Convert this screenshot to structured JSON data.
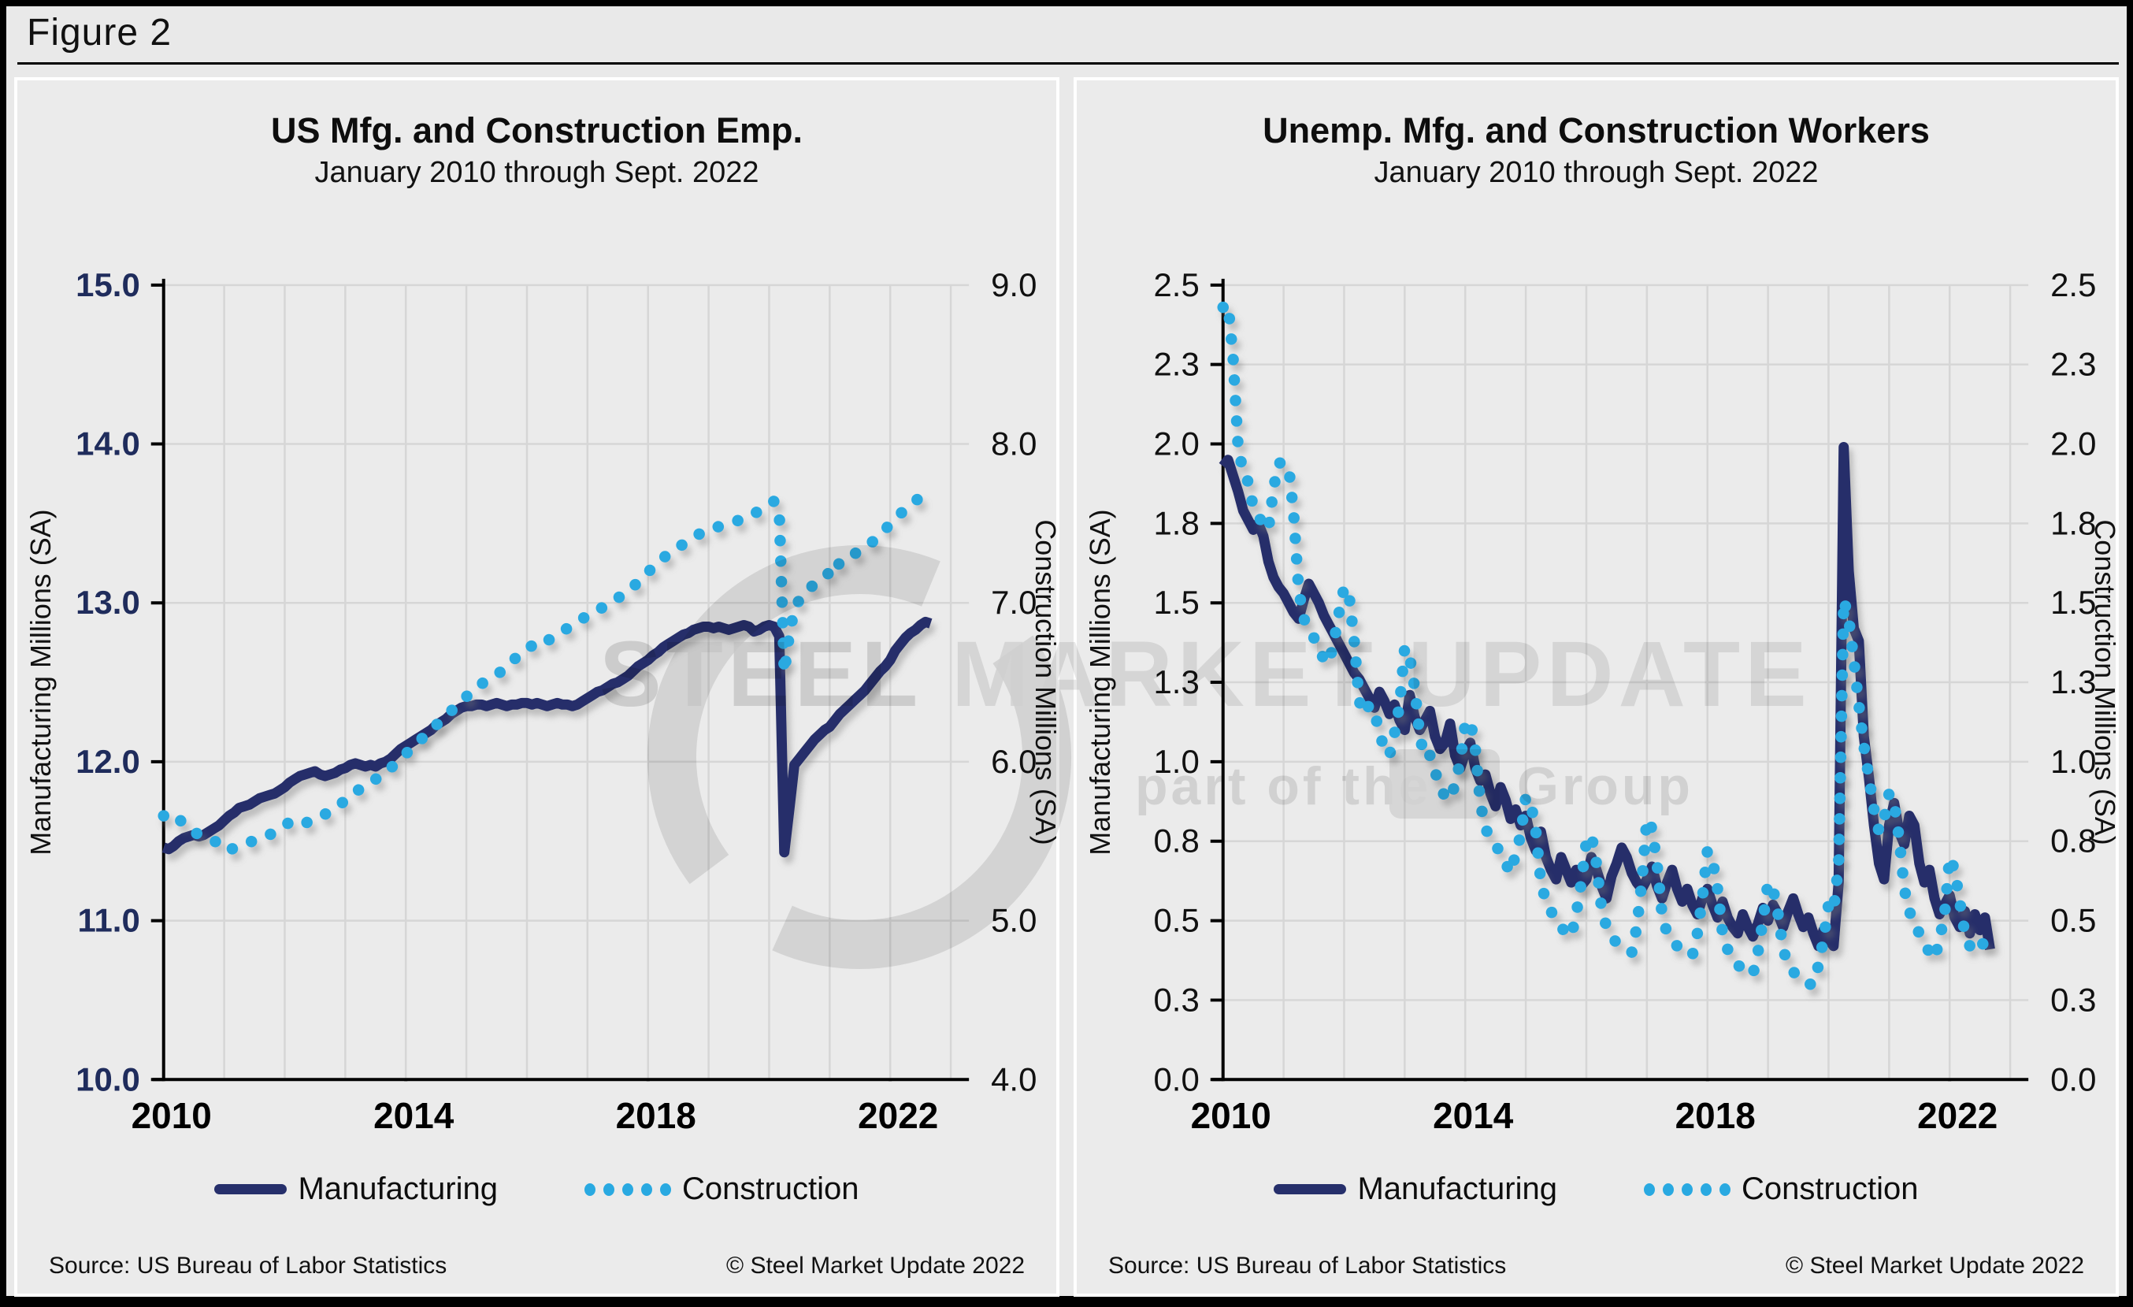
{
  "figure": {
    "label": "Figure 2"
  },
  "colors": {
    "manufacturing": "#262f6b",
    "construction": "#29a9e1",
    "left_tick_navy": "#1f2c5c",
    "tick_black": "#111111",
    "grid": "#d6d6d6",
    "panel_bg": "#ebebeb",
    "figure_bg": "#e9e9e9",
    "axis": "#000000",
    "watermark_gray": "#bfbfbf"
  },
  "watermark": {
    "line1_bold": "STEEL",
    "line1_rest": " MARKET UPDATE",
    "line2_prefix": "part of the",
    "line2_suffix": "Group"
  },
  "footer": {
    "source": "Source: US Bureau  of Labor Statistics",
    "copyright": "© Steel Market Update 2022"
  },
  "chart_data": [
    {
      "type": "line",
      "title": "US Mfg. and Construction Emp.",
      "subtitle": "January 2010 through Sept. 2022",
      "x_start": "2010-01",
      "x_end": "2022-09",
      "x_frequency": "monthly",
      "xlim": [
        2010,
        2023.3
      ],
      "x_ticks": [
        2010,
        2014,
        2018,
        2022
      ],
      "grid": {
        "vertical": "yearly",
        "horizontal": "left-axis-ticks"
      },
      "legend_position": "bottom",
      "left_axis": {
        "label": "Manufacturing Millions (SA)",
        "range": [
          10,
          15
        ],
        "tick_values": [
          15,
          14,
          13,
          12,
          11,
          10
        ],
        "tick_labels": [
          "15.0",
          "14.0",
          "13.0",
          "12.0",
          "11.0",
          "10.0"
        ],
        "tick_color": "#1f2c5c",
        "tick_bold": true
      },
      "right_axis": {
        "label": "Construction Millions (SA)",
        "range": [
          4,
          9
        ],
        "tick_values": [
          9,
          8,
          7,
          6,
          5,
          4
        ],
        "tick_labels": [
          "9.0",
          "8.0",
          "7.0",
          "6.0",
          "5.0",
          "4.0"
        ],
        "tick_color": "#111111",
        "tick_bold": false
      },
      "series": [
        {
          "name": "Manufacturing",
          "axis": "left",
          "style": "solid",
          "color_key": "manufacturing",
          "values": [
            11.46,
            11.45,
            11.47,
            11.5,
            11.52,
            11.53,
            11.54,
            11.53,
            11.54,
            11.56,
            11.58,
            11.6,
            11.63,
            11.66,
            11.68,
            11.71,
            11.72,
            11.73,
            11.75,
            11.77,
            11.78,
            11.79,
            11.8,
            11.82,
            11.84,
            11.87,
            11.89,
            11.91,
            11.92,
            11.93,
            11.94,
            11.92,
            11.91,
            11.92,
            11.93,
            11.95,
            11.96,
            11.98,
            11.99,
            11.98,
            11.97,
            11.98,
            11.97,
            11.99,
            12.0,
            12.02,
            12.05,
            12.08,
            12.1,
            12.12,
            12.14,
            12.16,
            12.18,
            12.2,
            12.23,
            12.25,
            12.27,
            12.3,
            12.32,
            12.34,
            12.35,
            12.35,
            12.36,
            12.36,
            12.35,
            12.36,
            12.37,
            12.36,
            12.35,
            12.36,
            12.36,
            12.37,
            12.37,
            12.36,
            12.37,
            12.36,
            12.35,
            12.36,
            12.37,
            12.36,
            12.36,
            12.35,
            12.36,
            12.38,
            12.4,
            12.42,
            12.44,
            12.45,
            12.47,
            12.49,
            12.5,
            12.52,
            12.54,
            12.57,
            12.6,
            12.62,
            12.64,
            12.67,
            12.69,
            12.72,
            12.74,
            12.76,
            12.78,
            12.8,
            12.81,
            12.83,
            12.84,
            12.85,
            12.85,
            12.84,
            12.85,
            12.84,
            12.83,
            12.84,
            12.85,
            12.86,
            12.85,
            12.82,
            12.83,
            12.85,
            12.86,
            12.85,
            12.79,
            11.43,
            11.7,
            11.98,
            12.02,
            12.06,
            12.1,
            12.14,
            12.17,
            12.2,
            12.22,
            12.26,
            12.3,
            12.33,
            12.36,
            12.39,
            12.42,
            12.45,
            12.49,
            12.53,
            12.57,
            12.6,
            12.64,
            12.7,
            12.74,
            12.78,
            12.81,
            12.83,
            12.86,
            12.88,
            12.87
          ]
        },
        {
          "name": "Construction",
          "axis": "right",
          "style": "dotted",
          "color_key": "construction",
          "values": [
            5.66,
            5.64,
            5.62,
            5.64,
            5.61,
            5.58,
            5.56,
            5.54,
            5.52,
            5.51,
            5.5,
            5.49,
            5.46,
            5.44,
            5.46,
            5.47,
            5.48,
            5.49,
            5.51,
            5.52,
            5.53,
            5.54,
            5.56,
            5.58,
            5.6,
            5.62,
            5.63,
            5.62,
            5.61,
            5.63,
            5.64,
            5.65,
            5.67,
            5.69,
            5.71,
            5.73,
            5.76,
            5.79,
            5.81,
            5.83,
            5.85,
            5.87,
            5.89,
            5.91,
            5.93,
            5.96,
            5.99,
            6.02,
            6.05,
            6.08,
            6.11,
            6.14,
            6.17,
            6.2,
            6.23,
            6.26,
            6.29,
            6.32,
            6.35,
            6.38,
            6.41,
            6.44,
            6.46,
            6.49,
            6.51,
            6.53,
            6.55,
            6.57,
            6.6,
            6.63,
            6.66,
            6.69,
            6.71,
            6.73,
            6.76,
            6.77,
            6.76,
            6.78,
            6.8,
            6.82,
            6.84,
            6.86,
            6.88,
            6.9,
            6.92,
            6.94,
            6.96,
            6.97,
            6.99,
            7.01,
            7.03,
            7.05,
            7.07,
            7.1,
            7.13,
            7.16,
            7.19,
            7.23,
            7.26,
            7.28,
            7.31,
            7.33,
            7.35,
            7.37,
            7.39,
            7.41,
            7.43,
            7.45,
            7.46,
            7.47,
            7.48,
            7.49,
            7.5,
            7.51,
            7.52,
            7.53,
            7.54,
            7.56,
            7.58,
            7.6,
            7.62,
            7.64,
            7.57,
            6.56,
            6.8,
            6.96,
            7.02,
            7.06,
            7.09,
            7.12,
            7.15,
            7.17,
            7.19,
            7.17,
            7.26,
            7.28,
            7.3,
            7.31,
            7.33,
            7.35,
            7.37,
            7.4,
            7.43,
            7.46,
            7.5,
            7.53,
            7.56,
            7.59,
            7.62,
            7.64,
            7.67,
            7.7,
            7.72
          ]
        }
      ]
    },
    {
      "type": "line",
      "title": "Unemp. Mfg. and Construction Workers",
      "subtitle": "January 2010 through Sept. 2022",
      "x_start": "2010-01",
      "x_end": "2022-09",
      "x_frequency": "monthly",
      "xlim": [
        2010,
        2023.3
      ],
      "x_ticks": [
        2010,
        2014,
        2018,
        2022
      ],
      "grid": {
        "vertical": "yearly",
        "horizontal": "left-axis-ticks"
      },
      "legend_position": "bottom",
      "left_axis": {
        "label": "Manufacturing Millions (SA)",
        "range": [
          0,
          2.5
        ],
        "tick_values": [
          2.5,
          2.25,
          2.0,
          1.75,
          1.5,
          1.25,
          1.0,
          0.75,
          0.5,
          0.25,
          0
        ],
        "tick_labels": [
          "2.5",
          "2.3",
          "2.0",
          "1.8",
          "1.5",
          "1.3",
          "1.0",
          "0.8",
          "0.5",
          "0.3",
          "0.0"
        ],
        "tick_color": "#111111",
        "tick_bold": false
      },
      "right_axis": {
        "label": "Construction Millions (SA)",
        "range": [
          0,
          2.5
        ],
        "tick_values": [
          2.5,
          2.25,
          2.0,
          1.75,
          1.5,
          1.25,
          1.0,
          0.75,
          0.5,
          0.25,
          0
        ],
        "tick_labels": [
          "2.5",
          "2.3",
          "2.0",
          "1.8",
          "1.5",
          "1.3",
          "1.0",
          "0.8",
          "0.5",
          "0.3",
          "0.0"
        ],
        "tick_color": "#111111",
        "tick_bold": false
      },
      "series": [
        {
          "name": "Manufacturing",
          "axis": "left",
          "style": "solid",
          "color_key": "manufacturing",
          "values": [
            1.93,
            1.95,
            1.9,
            1.85,
            1.79,
            1.76,
            1.73,
            1.75,
            1.71,
            1.63,
            1.58,
            1.55,
            1.53,
            1.5,
            1.47,
            1.45,
            1.51,
            1.56,
            1.53,
            1.5,
            1.46,
            1.43,
            1.4,
            1.37,
            1.34,
            1.31,
            1.28,
            1.26,
            1.23,
            1.2,
            1.17,
            1.22,
            1.19,
            1.15,
            1.18,
            1.13,
            1.1,
            1.21,
            1.14,
            1.1,
            1.13,
            1.16,
            1.08,
            1.04,
            1.06,
            1.12,
            1.02,
            0.98,
            1.03,
            1.06,
            0.98,
            0.94,
            0.96,
            0.9,
            0.86,
            0.92,
            0.88,
            0.82,
            0.85,
            0.8,
            0.83,
            0.76,
            0.72,
            0.78,
            0.7,
            0.66,
            0.63,
            0.7,
            0.66,
            0.62,
            0.66,
            0.61,
            0.63,
            0.7,
            0.66,
            0.61,
            0.57,
            0.64,
            0.68,
            0.73,
            0.7,
            0.65,
            0.62,
            0.6,
            0.63,
            0.67,
            0.61,
            0.57,
            0.62,
            0.66,
            0.6,
            0.56,
            0.6,
            0.55,
            0.52,
            0.57,
            0.6,
            0.55,
            0.51,
            0.56,
            0.51,
            0.48,
            0.46,
            0.52,
            0.48,
            0.45,
            0.49,
            0.54,
            0.5,
            0.55,
            0.52,
            0.48,
            0.53,
            0.57,
            0.52,
            0.48,
            0.51,
            0.46,
            0.42,
            0.47,
            0.44,
            0.42,
            0.62,
            1.99,
            1.6,
            1.42,
            1.38,
            1.08,
            0.95,
            0.8,
            0.68,
            0.63,
            0.8,
            0.87,
            0.78,
            0.74,
            0.83,
            0.8,
            0.68,
            0.62,
            0.66,
            0.57,
            0.52,
            0.55,
            0.58,
            0.51,
            0.48,
            0.53,
            0.46,
            0.52,
            0.47,
            0.51,
            0.41
          ]
        },
        {
          "name": "Construction",
          "axis": "right",
          "style": "dotted",
          "color_key": "construction",
          "values": [
            2.43,
            2.44,
            2.27,
            1.99,
            1.91,
            1.88,
            1.8,
            1.77,
            1.75,
            1.73,
            1.86,
            1.94,
            1.94,
            1.93,
            1.78,
            1.54,
            1.45,
            1.42,
            1.39,
            1.36,
            1.32,
            1.31,
            1.38,
            1.47,
            1.55,
            1.52,
            1.38,
            1.19,
            1.15,
            1.18,
            1.15,
            1.1,
            1.03,
            1.02,
            1.09,
            1.18,
            1.36,
            1.33,
            1.23,
            1.08,
            1.01,
            1.02,
            0.97,
            0.92,
            0.89,
            0.88,
            0.93,
            1.0,
            1.12,
            1.13,
            1.04,
            0.87,
            0.79,
            0.76,
            0.74,
            0.71,
            0.68,
            0.65,
            0.71,
            0.77,
            0.89,
            0.87,
            0.78,
            0.62,
            0.56,
            0.53,
            0.5,
            0.48,
            0.46,
            0.45,
            0.52,
            0.62,
            0.75,
            0.77,
            0.68,
            0.54,
            0.48,
            0.45,
            0.43,
            0.42,
            0.41,
            0.4,
            0.48,
            0.62,
            0.82,
            0.79,
            0.68,
            0.52,
            0.46,
            0.44,
            0.42,
            0.41,
            0.4,
            0.39,
            0.46,
            0.57,
            0.72,
            0.69,
            0.6,
            0.46,
            0.41,
            0.38,
            0.36,
            0.35,
            0.34,
            0.33,
            0.4,
            0.5,
            0.62,
            0.6,
            0.52,
            0.41,
            0.36,
            0.34,
            0.32,
            0.31,
            0.3,
            0.3,
            0.36,
            0.44,
            0.55,
            0.53,
            0.68,
            1.51,
            1.45,
            1.32,
            1.18,
            1.05,
            0.95,
            0.85,
            0.78,
            0.82,
            0.9,
            0.87,
            0.76,
            0.6,
            0.53,
            0.49,
            0.46,
            0.43,
            0.4,
            0.38,
            0.44,
            0.52,
            0.7,
            0.66,
            0.56,
            0.46,
            0.42,
            0.4,
            0.41,
            0.44,
            0.4
          ]
        }
      ]
    }
  ]
}
